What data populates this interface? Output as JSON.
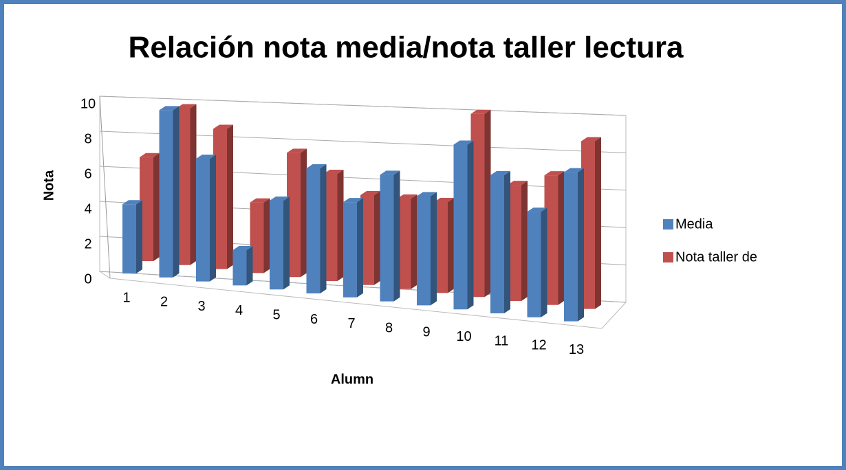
{
  "chart_data": {
    "type": "bar3d",
    "title": "Relación nota media/nota taller lectura",
    "x_label": "Alumn",
    "y_label": "Nota",
    "categories": [
      "1",
      "2",
      "3",
      "4",
      "5",
      "6",
      "7",
      "8",
      "9",
      "10",
      "11",
      "12",
      "13"
    ],
    "series": [
      {
        "name": "Media",
        "color": "#4f81bd",
        "values": [
          4,
          9.6,
          7,
          2,
          5,
          7,
          5.3,
          7,
          6,
          9,
          7.5,
          5.7,
          8
        ]
      },
      {
        "name": "Nota taller de",
        "color": "#c0504d",
        "values": [
          6,
          9,
          8,
          4,
          7,
          6,
          5,
          5,
          5,
          10,
          6.3,
          7,
          9
        ]
      }
    ],
    "ylim": [
      0,
      10
    ],
    "yticks": [
      0,
      2,
      4,
      6,
      8,
      10
    ],
    "grid": true,
    "legend": "right"
  }
}
